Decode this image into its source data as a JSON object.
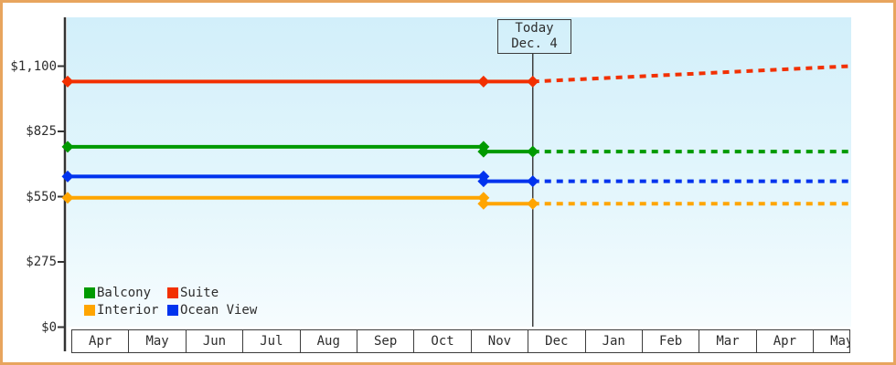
{
  "chart_data": {
    "type": "line",
    "x_axis": {
      "months": [
        "Apr",
        "May",
        "Jun",
        "Jul",
        "Aug",
        "Sep",
        "Oct",
        "Nov",
        "Dec",
        "Jan",
        "Feb",
        "Mar",
        "Apr",
        "May"
      ]
    },
    "y_axis": {
      "ticks": [
        {
          "label": "$0",
          "value": 0
        },
        {
          "label": "$275",
          "value": 275
        },
        {
          "label": "$550",
          "value": 550
        },
        {
          "label": "$825",
          "value": 825
        },
        {
          "label": "$1,100",
          "value": 1100
        }
      ],
      "range": [
        0,
        1100
      ]
    },
    "today": {
      "line1": "Today",
      "line2": "Dec. 4",
      "timeline_frac": 0.595
    },
    "series": [
      {
        "name": "Suite",
        "color": "#f23000",
        "history": [
          {
            "t": 0,
            "price": 1035
          },
          {
            "t": 0.532,
            "price": 1035
          },
          {
            "t": 0.595,
            "price": 1035
          }
        ],
        "forecast": [
          {
            "t": 0.595,
            "price": 1035
          },
          {
            "t": 1,
            "price": 1100
          }
        ]
      },
      {
        "name": "Balcony",
        "color": "#009a00",
        "history": [
          {
            "t": 0,
            "price": 760
          },
          {
            "t": 0.532,
            "price": 760
          },
          {
            "t": 0.532,
            "price": 740
          },
          {
            "t": 0.595,
            "price": 740
          }
        ],
        "forecast": [
          {
            "t": 0.595,
            "price": 740
          },
          {
            "t": 1,
            "price": 740
          }
        ]
      },
      {
        "name": "Ocean View",
        "color": "#0033ee",
        "history": [
          {
            "t": 0,
            "price": 635
          },
          {
            "t": 0.532,
            "price": 635
          },
          {
            "t": 0.532,
            "price": 615
          },
          {
            "t": 0.595,
            "price": 615
          }
        ],
        "forecast": [
          {
            "t": 0.595,
            "price": 615
          },
          {
            "t": 1,
            "price": 615
          }
        ]
      },
      {
        "name": "Interior",
        "color": "#ffa500",
        "history": [
          {
            "t": 0,
            "price": 545
          },
          {
            "t": 0.532,
            "price": 545
          },
          {
            "t": 0.532,
            "price": 520
          },
          {
            "t": 0.595,
            "price": 520
          }
        ],
        "forecast": [
          {
            "t": 0.595,
            "price": 520
          },
          {
            "t": 1,
            "price": 520
          }
        ]
      }
    ],
    "legend": [
      {
        "label": "Balcony",
        "color": "#009a00"
      },
      {
        "label": "Suite",
        "color": "#f23000"
      },
      {
        "label": "Interior",
        "color": "#ffa500"
      },
      {
        "label": "Ocean View",
        "color": "#0033ee"
      }
    ],
    "layout": {
      "grid": "off",
      "legend_position": "bottom-left-inside",
      "frame_color": "#e8a55e",
      "plot_background": [
        "#d2effa",
        "#f6fcfe"
      ]
    }
  }
}
